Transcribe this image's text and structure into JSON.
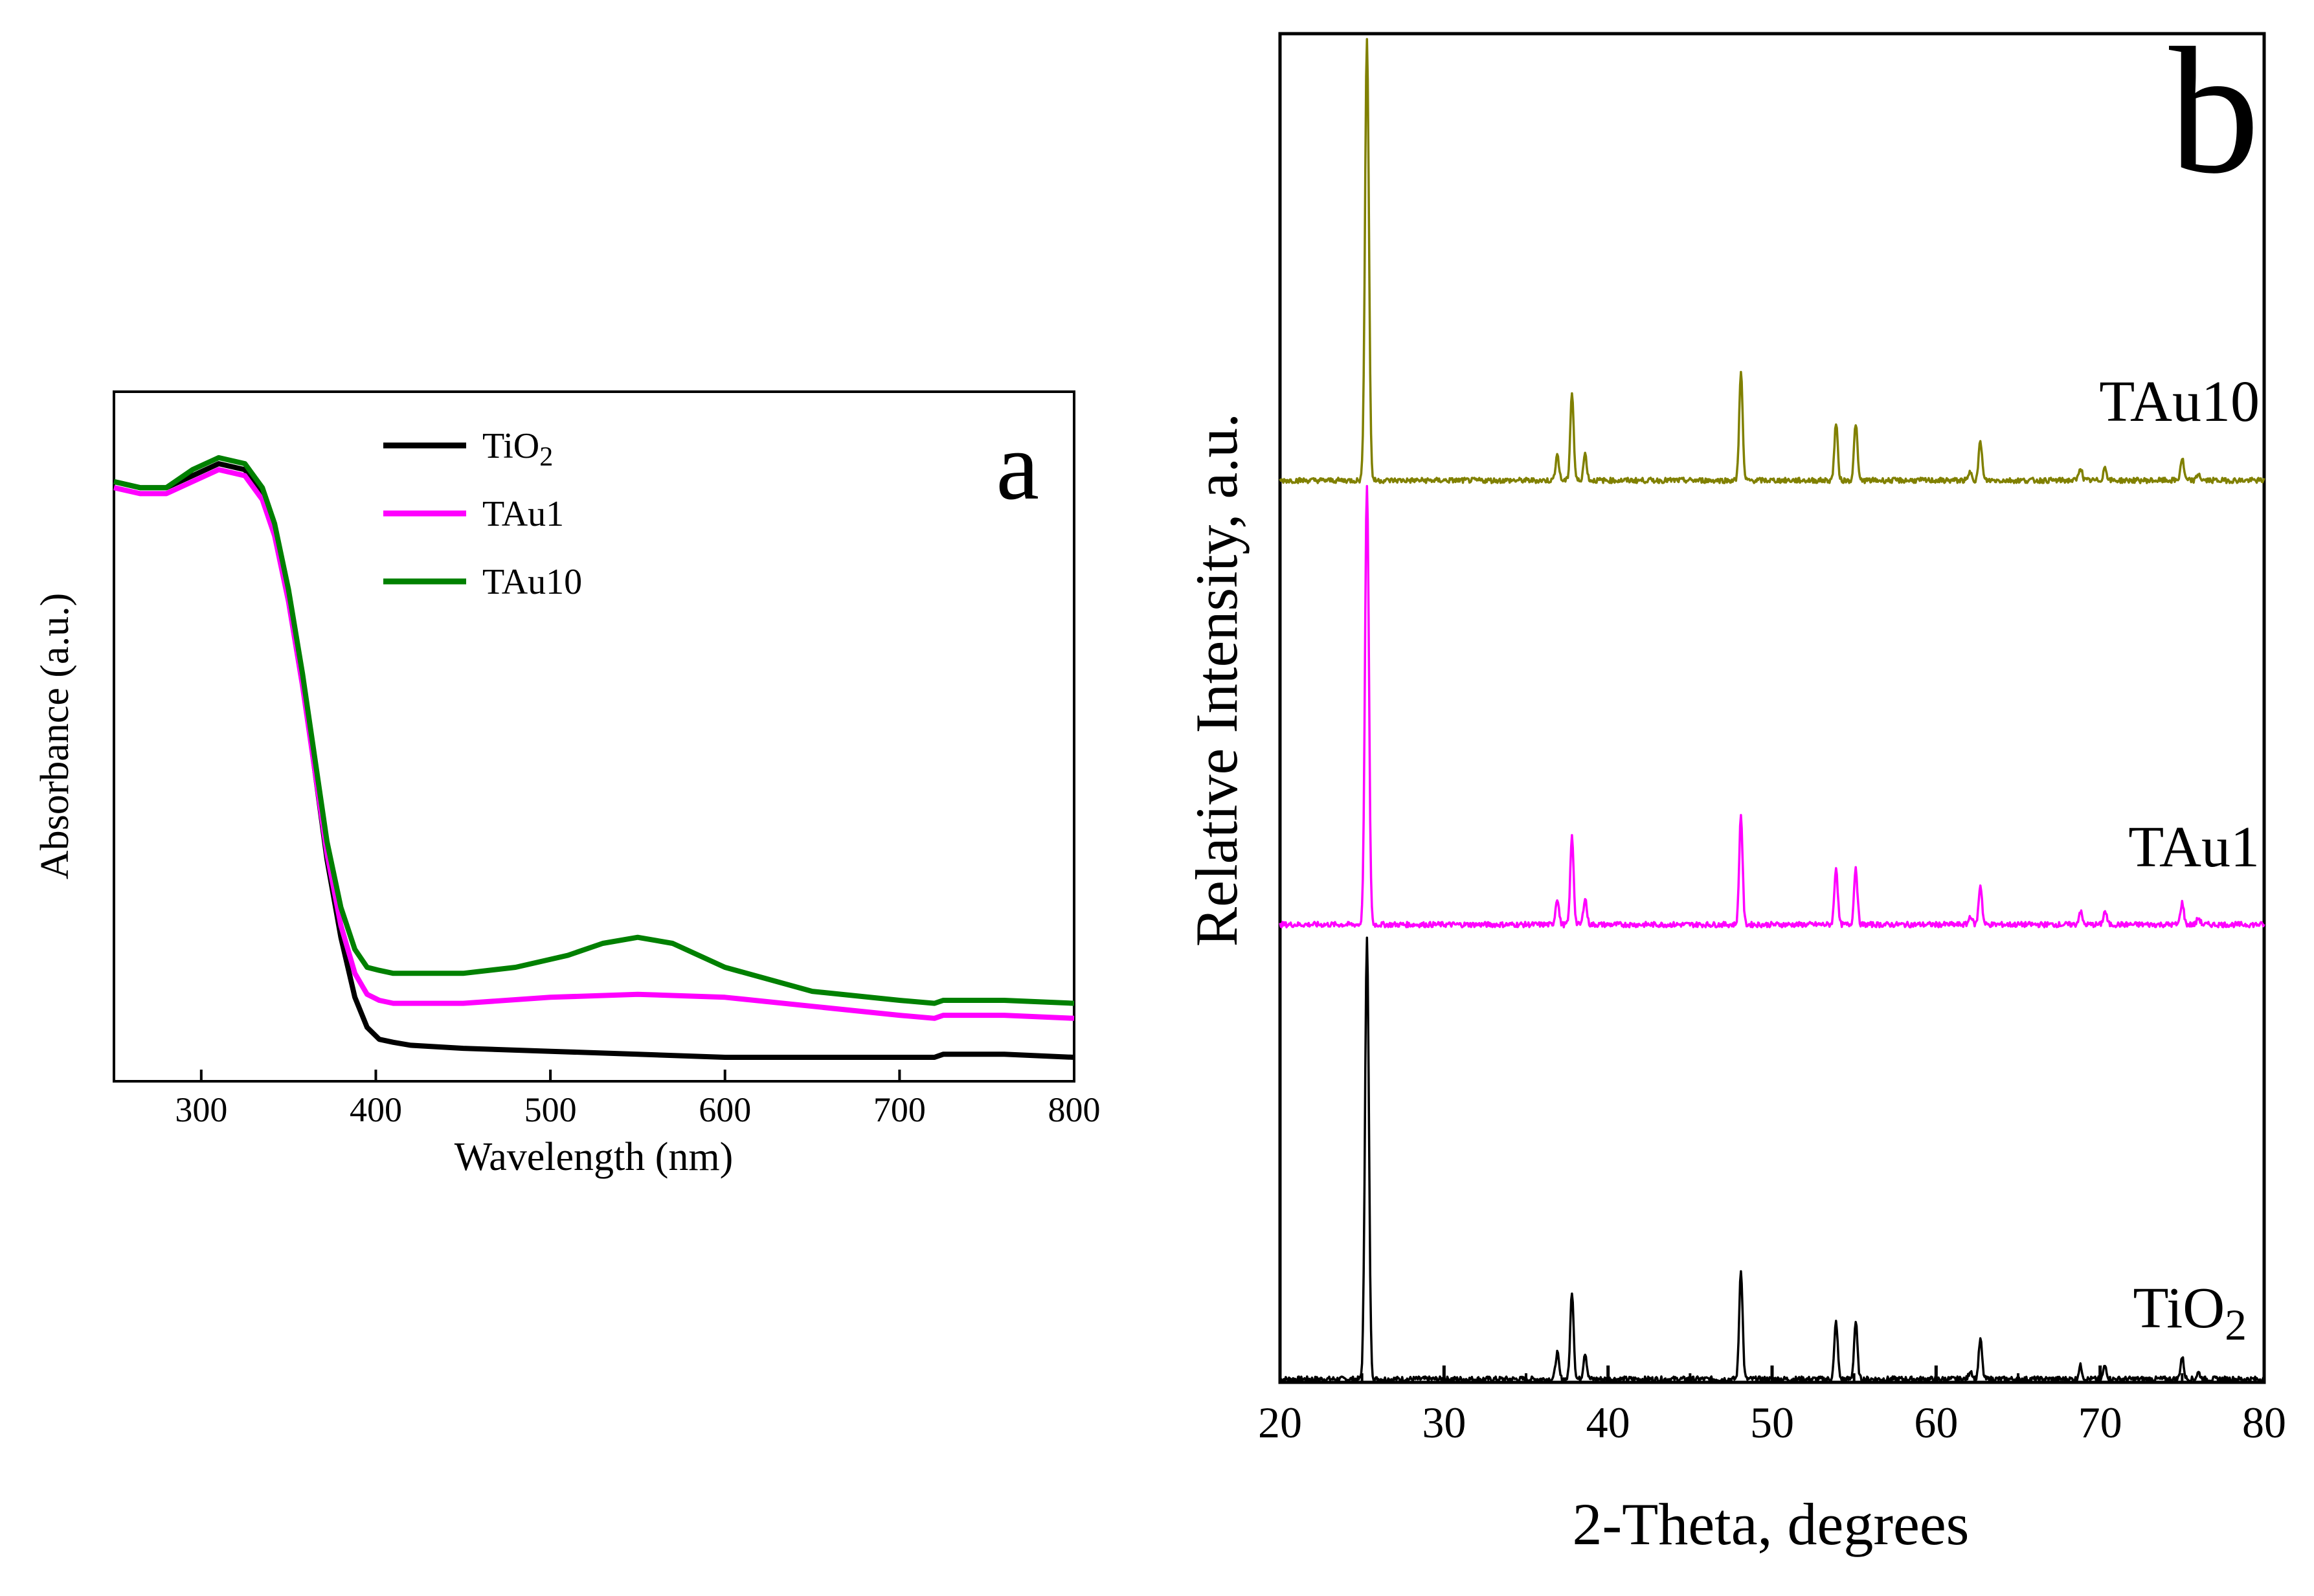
{
  "chart_data": [
    {
      "type": "line",
      "panel_label": "a",
      "title": "",
      "xlabel": "Wavelength (nm)",
      "ylabel": "Absorbance (a.u.)",
      "xlim": [
        250,
        800
      ],
      "ylim": [
        0,
        1.15
      ],
      "yticks_shown": false,
      "xticks": [
        {
          "value": 300,
          "label": "300"
        },
        {
          "value": 400,
          "label": "400"
        },
        {
          "value": 500,
          "label": "500"
        },
        {
          "value": 600,
          "label": "600"
        },
        {
          "value": 700,
          "label": "700"
        },
        {
          "value": 800,
          "label": "800"
        }
      ],
      "legend": {
        "placement": "top-center"
      },
      "series": [
        {
          "name": "TiO",
          "sub": "2",
          "color": "#000000",
          "x": [
            250,
            265,
            280,
            295,
            310,
            325,
            335,
            342,
            350,
            358,
            365,
            372,
            380,
            388,
            395,
            402,
            410,
            420,
            450,
            500,
            550,
            600,
            650,
            700,
            720,
            725,
            760,
            800
          ],
          "y": [
            1.0,
            0.99,
            0.99,
            1.01,
            1.03,
            1.02,
            0.98,
            0.92,
            0.81,
            0.67,
            0.52,
            0.37,
            0.24,
            0.14,
            0.09,
            0.07,
            0.065,
            0.06,
            0.055,
            0.05,
            0.045,
            0.04,
            0.04,
            0.04,
            0.04,
            0.045,
            0.045,
            0.04
          ]
        },
        {
          "name": "TAu1",
          "color": "#ff00ff",
          "x": [
            250,
            265,
            280,
            295,
            310,
            325,
            335,
            342,
            350,
            358,
            365,
            372,
            380,
            388,
            395,
            402,
            410,
            430,
            450,
            500,
            550,
            600,
            650,
            700,
            720,
            725,
            760,
            800
          ],
          "y": [
            0.99,
            0.98,
            0.98,
            1.0,
            1.02,
            1.01,
            0.97,
            0.91,
            0.8,
            0.66,
            0.52,
            0.38,
            0.26,
            0.18,
            0.145,
            0.135,
            0.13,
            0.13,
            0.13,
            0.14,
            0.145,
            0.14,
            0.125,
            0.11,
            0.105,
            0.11,
            0.11,
            0.105
          ]
        },
        {
          "name": "TAu10",
          "color": "#008000",
          "x": [
            250,
            265,
            280,
            295,
            310,
            325,
            335,
            342,
            350,
            358,
            365,
            372,
            380,
            388,
            395,
            402,
            410,
            430,
            450,
            480,
            510,
            530,
            550,
            570,
            600,
            650,
            700,
            720,
            725,
            760,
            800
          ],
          "y": [
            1.0,
            0.99,
            0.99,
            1.02,
            1.04,
            1.03,
            0.99,
            0.93,
            0.82,
            0.68,
            0.54,
            0.4,
            0.29,
            0.22,
            0.19,
            0.185,
            0.18,
            0.18,
            0.18,
            0.19,
            0.21,
            0.23,
            0.24,
            0.23,
            0.19,
            0.15,
            0.135,
            0.13,
            0.135,
            0.135,
            0.13
          ]
        }
      ]
    },
    {
      "type": "line",
      "panel_label": "b",
      "title": "",
      "xlabel": "2-Theta, degrees",
      "ylabel": "Relative Intensity, a.u.",
      "xlim": [
        20,
        80
      ],
      "ylim": [
        0,
        100
      ],
      "yticks_shown": false,
      "xticks": [
        {
          "value": 20,
          "label": "20"
        },
        {
          "value": 30,
          "label": "30"
        },
        {
          "value": 40,
          "label": "40"
        },
        {
          "value": 50,
          "label": "50"
        },
        {
          "value": 60,
          "label": "60"
        },
        {
          "value": 70,
          "label": "70"
        },
        {
          "value": 80,
          "label": "80"
        }
      ],
      "peaks": [
        {
          "two_theta": 25.3,
          "rel": 100
        },
        {
          "two_theta": 36.9,
          "rel": 6
        },
        {
          "two_theta": 37.8,
          "rel": 20
        },
        {
          "two_theta": 38.6,
          "rel": 6
        },
        {
          "two_theta": 48.1,
          "rel": 25
        },
        {
          "two_theta": 53.9,
          "rel": 13
        },
        {
          "two_theta": 55.1,
          "rel": 13
        },
        {
          "two_theta": 62.1,
          "rel": 2
        },
        {
          "two_theta": 62.7,
          "rel": 9
        },
        {
          "two_theta": 68.8,
          "rel": 3
        },
        {
          "two_theta": 70.3,
          "rel": 3
        },
        {
          "two_theta": 75.0,
          "rel": 5
        },
        {
          "two_theta": 76.0,
          "rel": 1.5
        }
      ],
      "series": [
        {
          "name": "TiO",
          "sub": "2",
          "color": "#000000",
          "offset": 0,
          "scale": 100
        },
        {
          "name": "TAu1",
          "color": "#ff00ff",
          "offset": 50.5,
          "scale": 100
        },
        {
          "name": "TAu10",
          "color": "#808000",
          "offset": 100,
          "scale": 100
        }
      ]
    }
  ]
}
